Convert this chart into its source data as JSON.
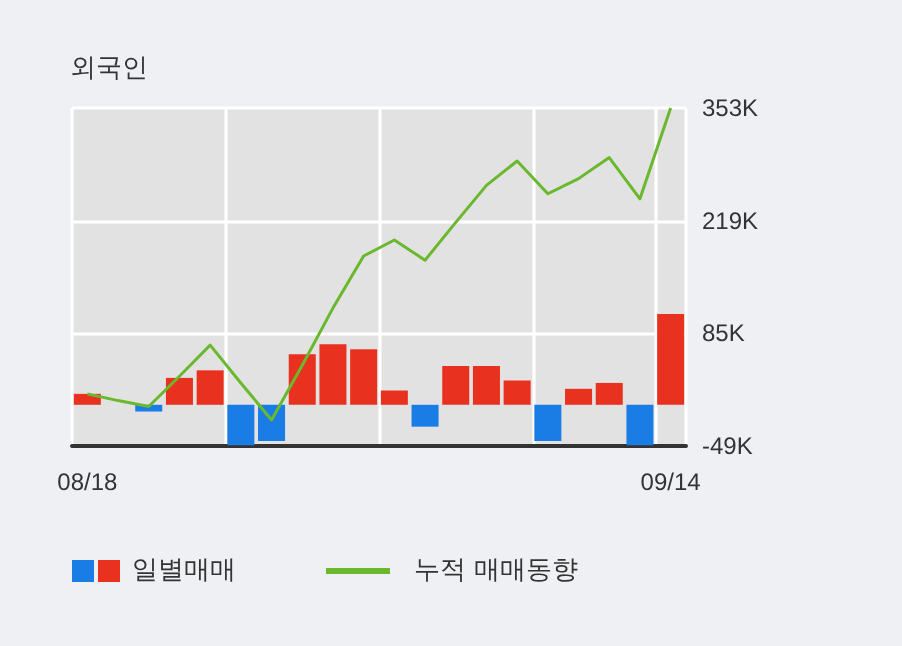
{
  "chart_data": {
    "type": "bar",
    "title": "외국인",
    "categories": [
      "08/18",
      null,
      null,
      null,
      null,
      null,
      null,
      null,
      null,
      null,
      null,
      null,
      null,
      null,
      null,
      null,
      null,
      null,
      null,
      "09/14"
    ],
    "series": [
      {
        "name": "일별매매",
        "colors": [
          "#e8321f",
          "#e8321f",
          "#1a7de6",
          "#e8321f",
          "#e8321f",
          "#1a7de6",
          "#1a7de6",
          "#e8321f",
          "#e8321f",
          "#e8321f",
          "#e8321f",
          "#1a7de6",
          "#e8321f",
          "#e8321f",
          "#e8321f",
          "#1a7de6",
          "#e8321f",
          "#e8321f",
          "#1a7de6",
          "#e8321f"
        ],
        "values": [
          13,
          0,
          -8,
          32,
          41,
          -48,
          -43,
          60,
          72,
          66,
          17,
          -26,
          46,
          46,
          29,
          -43,
          19,
          26,
          -48,
          108
        ]
      },
      {
        "name": "누적 매매동향",
        "type": "line",
        "color": "#6ab82e",
        "values": [
          13,
          5,
          -2,
          34,
          71,
          26,
          -18,
          47,
          115,
          177,
          196,
          172,
          217,
          261,
          290,
          251,
          269,
          294,
          245,
          353
        ]
      }
    ],
    "ylim": [
      -49,
      353
    ],
    "yticks": [
      {
        "value": -49,
        "label": "-49K"
      },
      {
        "value": 85,
        "label": "85K"
      },
      {
        "value": 219,
        "label": "219K"
      },
      {
        "value": 353,
        "label": "353K"
      }
    ],
    "grid": true,
    "legend": "bottom",
    "marker": "none"
  }
}
